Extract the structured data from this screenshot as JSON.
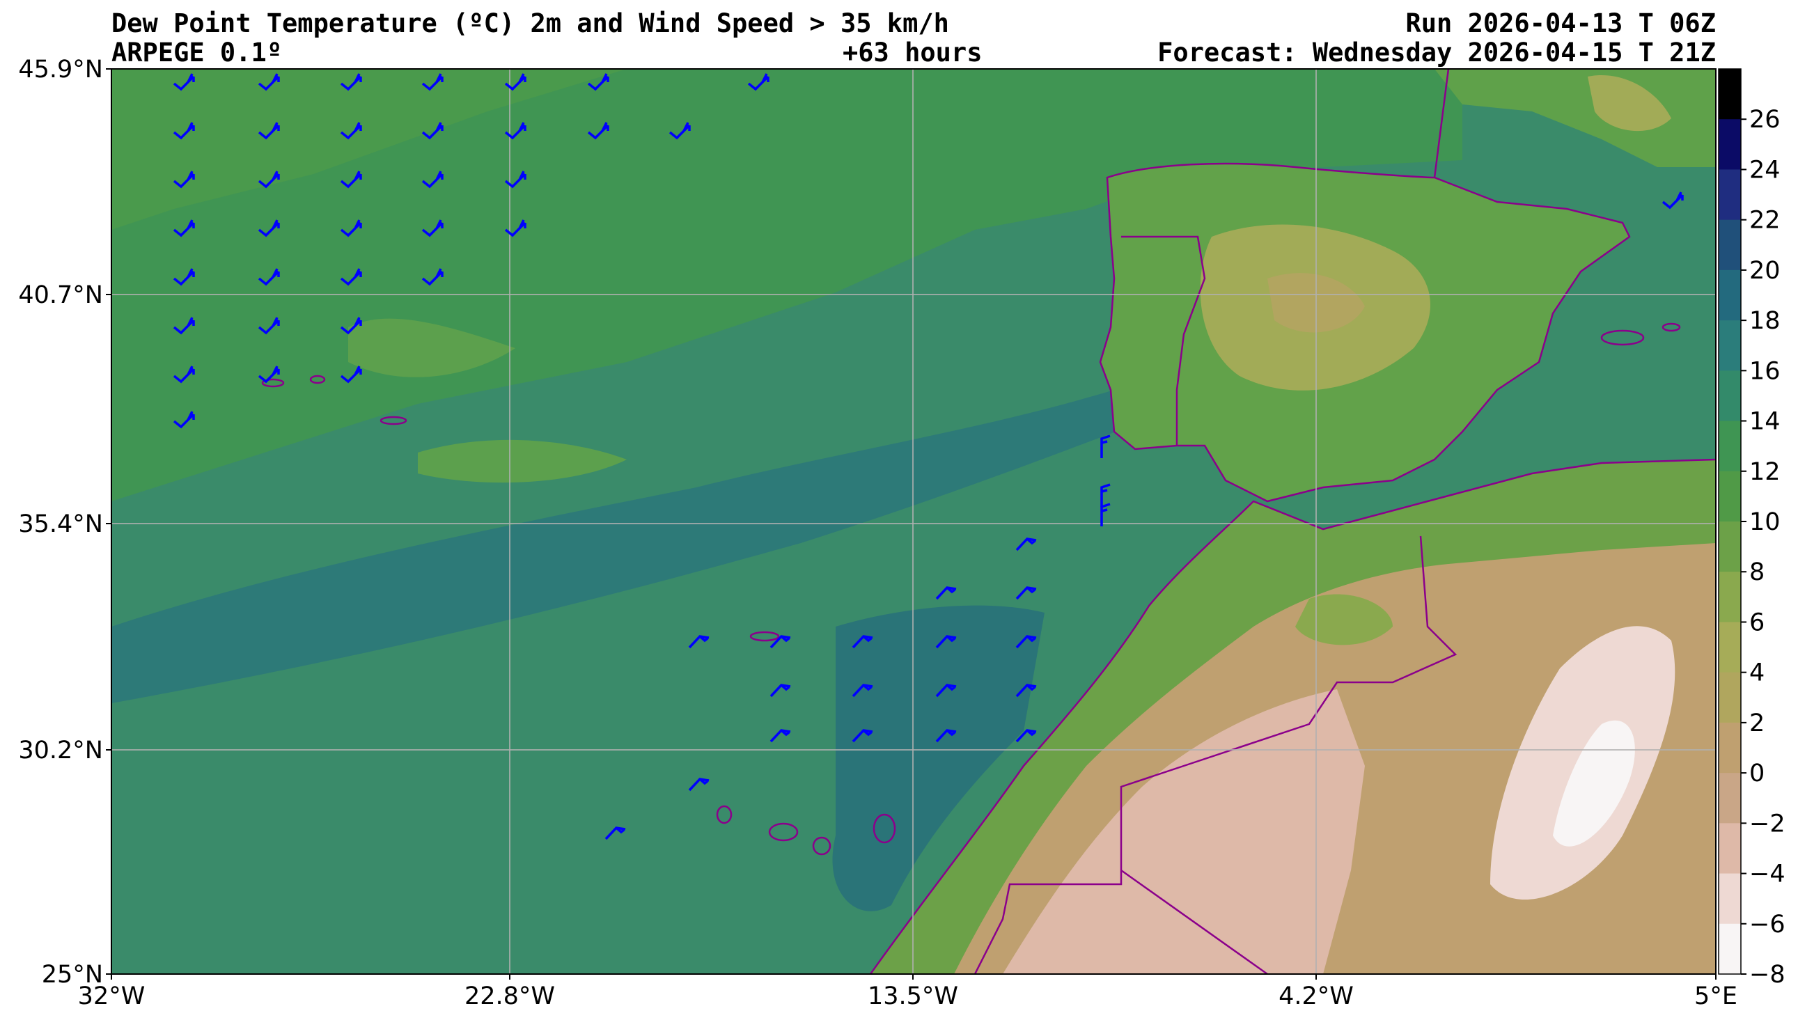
{
  "header": {
    "title": "Dew Point Temperature (ºC) 2m and Wind Speed > 35 km/h",
    "model": "ARPEGE 0.1º",
    "lead_time": "+63 hours",
    "run": "Run 2026-04-13 T 06Z",
    "forecast": "Forecast: Wednesday 2026-04-15 T 21Z"
  },
  "map": {
    "lat_labels": [
      "45.9°N",
      "40.7°N",
      "35.4°N",
      "30.2°N",
      "25°N"
    ],
    "lon_labels": [
      "32°W",
      "22.8°W",
      "13.5°W",
      "4.2°W",
      "5°E"
    ],
    "lon_range": [
      -32,
      5
    ],
    "lat_range": [
      25,
      45.9
    ]
  },
  "colorbar": {
    "labels": [
      "26",
      "24",
      "22",
      "20",
      "18",
      "16",
      "14",
      "12",
      "10",
      "8",
      "6",
      "4",
      "2",
      "0",
      "−2",
      "−4",
      "−6",
      "−8"
    ],
    "colors": [
      "#000000",
      "#0b0b66",
      "#1f2d80",
      "#20507a",
      "#236a7e",
      "#2b7d7b",
      "#338a6a",
      "#3f9553",
      "#509a47",
      "#6ca148",
      "#8aa94e",
      "#a6ac58",
      "#b0a65e",
      "#bfa070",
      "#c9a687",
      "#deb9a8",
      "#eed9d3",
      "#f8f5f5"
    ],
    "barb_color": "#0000ff",
    "border_color": "#8b008b"
  }
}
